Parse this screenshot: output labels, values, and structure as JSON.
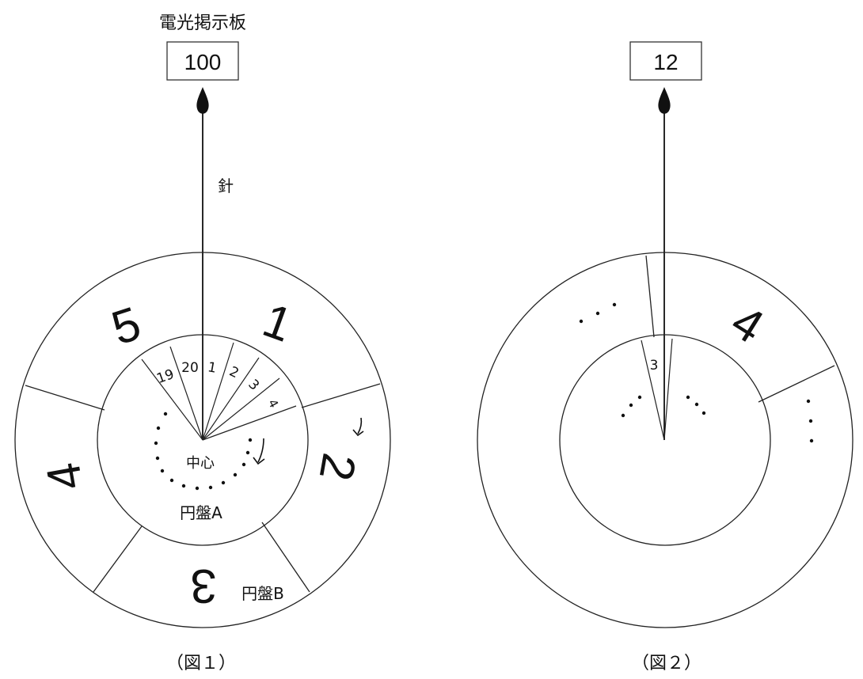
{
  "figure1": {
    "board_title": "電光掲示板",
    "board_value": "100",
    "needle_label": "針",
    "center_label": "中心",
    "disc_a_label": "円盤A",
    "disc_b_label": "円盤B",
    "outer_numbers": [
      "1",
      "2",
      "3",
      "4",
      "5"
    ],
    "inner_numbers": [
      "19",
      "20",
      "1",
      "2",
      "3",
      "4"
    ],
    "caption": "（図１）"
  },
  "figure2": {
    "board_value": "12",
    "outer_number": "4",
    "inner_number": "3",
    "caption": "（図２）"
  }
}
